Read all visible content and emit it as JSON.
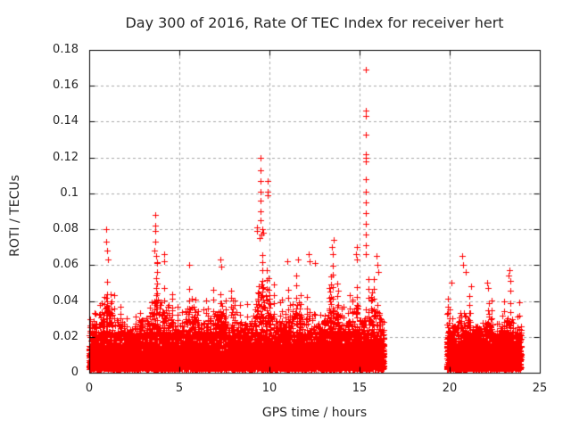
{
  "chart_data": {
    "type": "scatter",
    "title": "Day 300 of 2016, Rate Of TEC Index for receiver hert",
    "xlabel": "GPS time / hours",
    "ylabel": "ROTI / TECUs",
    "xlim": [
      0,
      25
    ],
    "ylim": [
      0,
      0.18
    ],
    "x_ticks": [
      0,
      5,
      10,
      15,
      20,
      25
    ],
    "x_tick_labels": [
      "0",
      "5",
      "10",
      "15",
      "20",
      "25"
    ],
    "y_ticks": [
      0,
      0.02,
      0.04,
      0.06,
      0.08,
      0.1,
      0.12,
      0.14,
      0.16,
      0.18
    ],
    "y_tick_labels": [
      "0",
      "0.02",
      "0.04",
      "0.06",
      "0.08",
      "0.1",
      "0.12",
      "0.14",
      "0.16",
      "0.18"
    ],
    "grid": true,
    "legend": "none",
    "marker": "plus",
    "marker_size_px": 7,
    "colors": {
      "marker": "#ff0000",
      "grid": "#a9a9a9",
      "frame": "#000000",
      "text": "#262626",
      "background": "#ffffff"
    },
    "segments": [
      {
        "x_start": 0.0,
        "x_end": 16.35,
        "envelope": [
          [
            0.0,
            0.042
          ],
          [
            0.3,
            0.046
          ],
          [
            0.6,
            0.052
          ],
          [
            0.8,
            0.047
          ],
          [
            0.95,
            0.072
          ],
          [
            1.15,
            0.058
          ],
          [
            1.4,
            0.05
          ],
          [
            1.7,
            0.046
          ],
          [
            2.0,
            0.044
          ],
          [
            2.3,
            0.04
          ],
          [
            2.6,
            0.042
          ],
          [
            2.9,
            0.048
          ],
          [
            3.2,
            0.05
          ],
          [
            3.45,
            0.056
          ],
          [
            3.65,
            0.078
          ],
          [
            3.9,
            0.068
          ],
          [
            4.15,
            0.062
          ],
          [
            4.4,
            0.052
          ],
          [
            4.7,
            0.046
          ],
          [
            5.0,
            0.044
          ],
          [
            5.3,
            0.05
          ],
          [
            5.55,
            0.06
          ],
          [
            5.85,
            0.052
          ],
          [
            6.15,
            0.044
          ],
          [
            6.45,
            0.048
          ],
          [
            6.75,
            0.05
          ],
          [
            7.05,
            0.054
          ],
          [
            7.35,
            0.062
          ],
          [
            7.6,
            0.048
          ],
          [
            7.9,
            0.05
          ],
          [
            8.2,
            0.046
          ],
          [
            8.5,
            0.042
          ],
          [
            8.8,
            0.046
          ],
          [
            9.1,
            0.054
          ],
          [
            9.35,
            0.072
          ],
          [
            9.5,
            0.085
          ],
          [
            9.7,
            0.068
          ],
          [
            9.9,
            0.075
          ],
          [
            10.15,
            0.06
          ],
          [
            10.4,
            0.048
          ],
          [
            10.7,
            0.046
          ],
          [
            11.0,
            0.058
          ],
          [
            11.3,
            0.05
          ],
          [
            11.6,
            0.058
          ],
          [
            11.9,
            0.048
          ],
          [
            12.2,
            0.06
          ],
          [
            12.5,
            0.056
          ],
          [
            12.8,
            0.046
          ],
          [
            13.1,
            0.05
          ],
          [
            13.45,
            0.066
          ],
          [
            13.7,
            0.054
          ],
          [
            14.0,
            0.048
          ],
          [
            14.3,
            0.045
          ],
          [
            14.6,
            0.05
          ],
          [
            14.85,
            0.064
          ],
          [
            15.1,
            0.05
          ],
          [
            15.35,
            0.062
          ],
          [
            15.6,
            0.05
          ],
          [
            15.9,
            0.058
          ],
          [
            16.1,
            0.055
          ],
          [
            16.35,
            0.038
          ]
        ]
      },
      {
        "x_start": 19.85,
        "x_end": 23.95,
        "envelope": [
          [
            19.85,
            0.04
          ],
          [
            20.1,
            0.048
          ],
          [
            20.4,
            0.044
          ],
          [
            20.7,
            0.058
          ],
          [
            20.95,
            0.05
          ],
          [
            21.2,
            0.046
          ],
          [
            21.5,
            0.042
          ],
          [
            21.8,
            0.039
          ],
          [
            22.1,
            0.046
          ],
          [
            22.4,
            0.041
          ],
          [
            22.7,
            0.038
          ],
          [
            23.0,
            0.044
          ],
          [
            23.3,
            0.054
          ],
          [
            23.6,
            0.044
          ],
          [
            23.95,
            0.04
          ]
        ]
      }
    ],
    "outliers": [
      [
        15.35,
        0.169
      ],
      [
        15.35,
        0.146
      ],
      [
        15.36,
        0.143
      ],
      [
        15.35,
        0.133
      ],
      [
        15.34,
        0.122
      ],
      [
        15.36,
        0.12
      ],
      [
        15.35,
        0.118
      ],
      [
        15.35,
        0.108
      ],
      [
        15.34,
        0.101
      ],
      [
        15.35,
        0.095
      ],
      [
        15.36,
        0.089
      ],
      [
        15.35,
        0.083
      ],
      [
        15.34,
        0.077
      ],
      [
        15.36,
        0.071
      ],
      [
        15.35,
        0.066
      ],
      [
        9.5,
        0.12
      ],
      [
        9.5,
        0.113
      ],
      [
        9.49,
        0.107
      ],
      [
        9.51,
        0.101
      ],
      [
        9.5,
        0.096
      ],
      [
        9.49,
        0.09
      ],
      [
        9.51,
        0.085
      ],
      [
        9.9,
        0.107
      ],
      [
        9.89,
        0.101
      ],
      [
        9.91,
        0.099
      ],
      [
        9.3,
        0.081
      ],
      [
        9.33,
        0.079
      ],
      [
        9.6,
        0.08
      ],
      [
        9.64,
        0.078
      ],
      [
        9.55,
        0.077
      ],
      [
        9.45,
        0.075
      ],
      [
        3.64,
        0.088
      ],
      [
        3.65,
        0.082
      ],
      [
        3.66,
        0.079
      ],
      [
        3.64,
        0.073
      ],
      [
        3.6,
        0.068
      ],
      [
        3.7,
        0.065
      ],
      [
        3.75,
        0.061
      ],
      [
        0.95,
        0.08
      ],
      [
        0.96,
        0.073
      ],
      [
        1.0,
        0.068
      ],
      [
        1.05,
        0.063
      ],
      [
        4.15,
        0.066
      ],
      [
        4.17,
        0.062
      ],
      [
        5.55,
        0.06
      ],
      [
        7.3,
        0.063
      ],
      [
        7.33,
        0.059
      ],
      [
        11.0,
        0.062
      ],
      [
        11.6,
        0.063
      ],
      [
        12.2,
        0.066
      ],
      [
        12.23,
        0.062
      ],
      [
        12.5,
        0.061
      ],
      [
        13.45,
        0.07
      ],
      [
        13.55,
        0.074
      ],
      [
        13.5,
        0.066
      ],
      [
        14.85,
        0.07
      ],
      [
        14.8,
        0.066
      ],
      [
        14.87,
        0.063
      ],
      [
        15.95,
        0.065
      ],
      [
        16.0,
        0.06
      ],
      [
        16.05,
        0.056
      ],
      [
        20.7,
        0.065
      ],
      [
        20.72,
        0.06
      ],
      [
        20.9,
        0.056
      ],
      [
        21.2,
        0.048
      ],
      [
        22.1,
        0.05
      ],
      [
        22.12,
        0.047
      ],
      [
        23.3,
        0.057
      ],
      [
        23.26,
        0.054
      ],
      [
        23.35,
        0.051
      ],
      [
        20.1,
        0.05
      ]
    ],
    "cloud": {
      "step_hours": 0.022,
      "base_per_step": 9,
      "mid_per_step": 3,
      "blade_prob": 0.3,
      "base_y_min": 0.002,
      "base_y_scale": 0.0055,
      "base_y_cap": 0.023,
      "seed": 42
    }
  }
}
